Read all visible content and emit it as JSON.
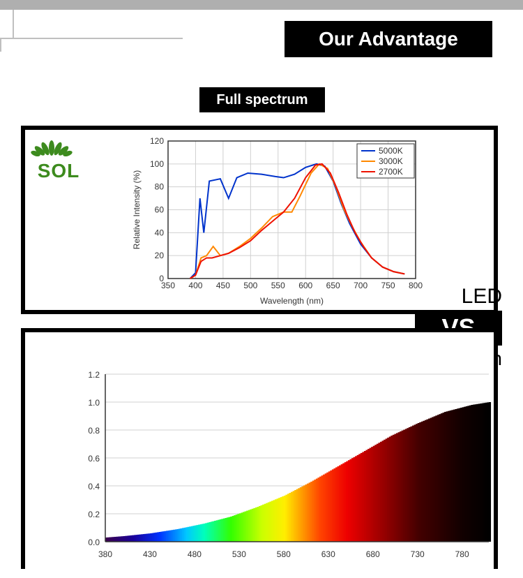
{
  "header": {
    "advantage": "Our Advantage",
    "subheading": "Full spectrum"
  },
  "logo": {
    "text": "SOL",
    "color": "#3d8b1e"
  },
  "labels": {
    "led": "LED",
    "vs": "VS",
    "halogen": "Halogen"
  },
  "chart1": {
    "type": "line",
    "title": "",
    "xlabel": "Wavelength (nm)",
    "ylabel": "Relative Intensity (%)",
    "xlim": [
      350,
      800
    ],
    "ylim": [
      0,
      120
    ],
    "xtick_step": 50,
    "ytick_step": 20,
    "xticks": [
      350,
      400,
      450,
      500,
      550,
      600,
      650,
      700,
      750,
      800
    ],
    "yticks": [
      0,
      20,
      40,
      60,
      80,
      100,
      120
    ],
    "grid_color": "#d4d4d4",
    "background_color": "#ffffff",
    "label_fontsize": 12,
    "tick_fontsize": 11,
    "line_width": 2,
    "legend_position": "top-right",
    "legend_border": "#333",
    "series": [
      {
        "name": "5000K",
        "color": "#0033cc",
        "data": [
          [
            390,
            0
          ],
          [
            400,
            5
          ],
          [
            408,
            70
          ],
          [
            415,
            40
          ],
          [
            425,
            85
          ],
          [
            445,
            87
          ],
          [
            460,
            70
          ],
          [
            475,
            88
          ],
          [
            495,
            92
          ],
          [
            520,
            91
          ],
          [
            545,
            89
          ],
          [
            560,
            88
          ],
          [
            580,
            91
          ],
          [
            600,
            97
          ],
          [
            620,
            100
          ],
          [
            635,
            98
          ],
          [
            650,
            85
          ],
          [
            665,
            65
          ],
          [
            680,
            48
          ],
          [
            700,
            30
          ],
          [
            720,
            18
          ],
          [
            740,
            10
          ],
          [
            760,
            6
          ],
          [
            780,
            4
          ]
        ]
      },
      {
        "name": "3000K",
        "color": "#ff8800",
        "data": [
          [
            390,
            0
          ],
          [
            400,
            3
          ],
          [
            410,
            18
          ],
          [
            420,
            20
          ],
          [
            432,
            28
          ],
          [
            445,
            20
          ],
          [
            460,
            22
          ],
          [
            480,
            28
          ],
          [
            500,
            35
          ],
          [
            520,
            44
          ],
          [
            540,
            54
          ],
          [
            560,
            58
          ],
          [
            575,
            58
          ],
          [
            590,
            72
          ],
          [
            610,
            92
          ],
          [
            625,
            100
          ],
          [
            640,
            96
          ],
          [
            655,
            80
          ],
          [
            670,
            60
          ],
          [
            685,
            45
          ],
          [
            700,
            32
          ],
          [
            720,
            18
          ],
          [
            740,
            10
          ],
          [
            760,
            6
          ],
          [
            780,
            4
          ]
        ]
      },
      {
        "name": "2700K",
        "color": "#ee1100",
        "data": [
          [
            390,
            0
          ],
          [
            400,
            3
          ],
          [
            410,
            15
          ],
          [
            420,
            18
          ],
          [
            430,
            18
          ],
          [
            445,
            20
          ],
          [
            460,
            22
          ],
          [
            480,
            27
          ],
          [
            500,
            33
          ],
          [
            520,
            42
          ],
          [
            540,
            50
          ],
          [
            560,
            58
          ],
          [
            580,
            70
          ],
          [
            600,
            88
          ],
          [
            618,
            99
          ],
          [
            630,
            100
          ],
          [
            645,
            92
          ],
          [
            660,
            75
          ],
          [
            675,
            56
          ],
          [
            690,
            40
          ],
          [
            705,
            28
          ],
          [
            720,
            18
          ],
          [
            740,
            10
          ],
          [
            760,
            6
          ],
          [
            780,
            4
          ]
        ]
      }
    ]
  },
  "chart2": {
    "type": "spectrum-bar",
    "xlim": [
      380,
      810
    ],
    "ylim": [
      0.0,
      1.2
    ],
    "xtick_step": 50,
    "ytick_step": 0.2,
    "xticks": [
      380,
      430,
      480,
      530,
      580,
      630,
      680,
      730,
      780
    ],
    "yticks": [
      "0.0",
      "0.2",
      "0.4",
      "0.6",
      "0.8",
      "1.0",
      "1.2"
    ],
    "grid_color": "#cfcfcf",
    "background_color": "#ffffff",
    "tick_fontsize": 16,
    "curve": [
      [
        380,
        0.03
      ],
      [
        400,
        0.04
      ],
      [
        430,
        0.06
      ],
      [
        460,
        0.09
      ],
      [
        490,
        0.13
      ],
      [
        520,
        0.18
      ],
      [
        550,
        0.25
      ],
      [
        580,
        0.33
      ],
      [
        610,
        0.43
      ],
      [
        640,
        0.54
      ],
      [
        670,
        0.65
      ],
      [
        700,
        0.76
      ],
      [
        730,
        0.85
      ],
      [
        760,
        0.93
      ],
      [
        790,
        0.98
      ],
      [
        810,
        1.0
      ]
    ],
    "spectrum_stops": [
      {
        "wl": 380,
        "color": "#3a004f"
      },
      {
        "wl": 410,
        "color": "#1a0099"
      },
      {
        "wl": 440,
        "color": "#0033ff"
      },
      {
        "wl": 470,
        "color": "#00c8ff"
      },
      {
        "wl": 490,
        "color": "#00ffbb"
      },
      {
        "wl": 520,
        "color": "#33ff00"
      },
      {
        "wl": 555,
        "color": "#ccff00"
      },
      {
        "wl": 580,
        "color": "#ffee00"
      },
      {
        "wl": 600,
        "color": "#ff9900"
      },
      {
        "wl": 620,
        "color": "#ff4400"
      },
      {
        "wl": 650,
        "color": "#ee0000"
      },
      {
        "wl": 690,
        "color": "#990000"
      },
      {
        "wl": 730,
        "color": "#440000"
      },
      {
        "wl": 780,
        "color": "#110000"
      },
      {
        "wl": 810,
        "color": "#000000"
      }
    ]
  }
}
